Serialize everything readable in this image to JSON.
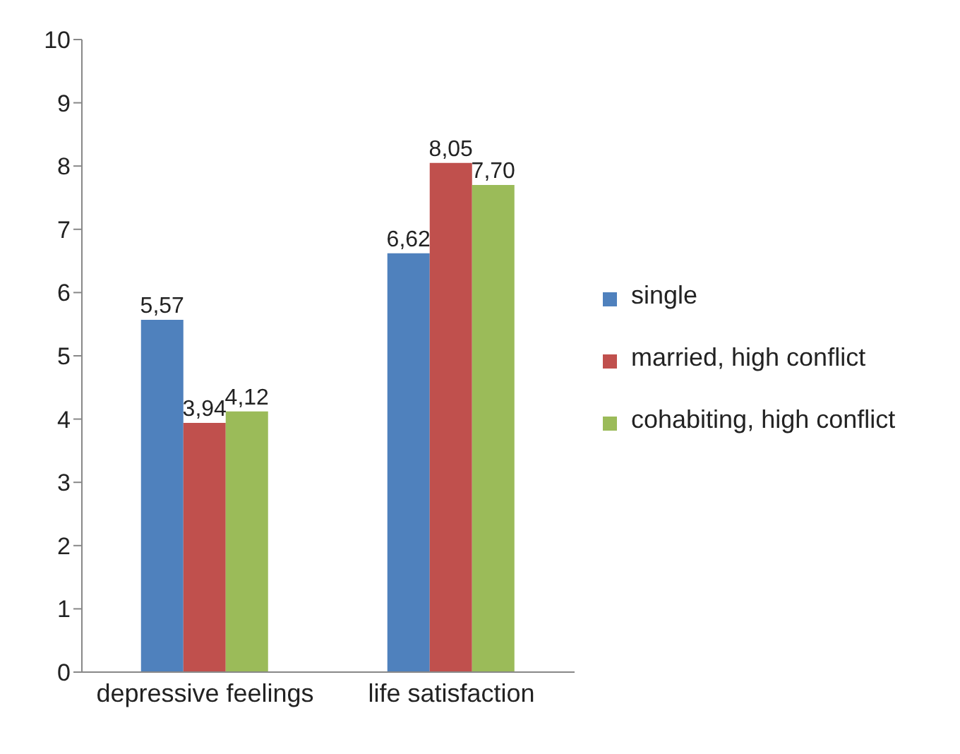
{
  "chart_data": {
    "type": "bar",
    "categories": [
      "depressive feelings",
      "life satisfaction"
    ],
    "series": [
      {
        "name": "single",
        "color": "#4f81bd",
        "values": [
          5.57,
          6.62
        ],
        "value_labels": [
          "5,57",
          "6,62"
        ]
      },
      {
        "name": "married, high conflict",
        "color": "#c0504d",
        "values": [
          3.94,
          8.05
        ],
        "value_labels": [
          "3,94",
          "8,05"
        ]
      },
      {
        "name": "cohabiting, high conflict",
        "color": "#9bbb59",
        "values": [
          4.12,
          7.7
        ],
        "value_labels": [
          "4,12",
          "7,70"
        ]
      }
    ],
    "ylim": [
      0,
      10
    ],
    "yticks": [
      0,
      1,
      2,
      3,
      4,
      5,
      6,
      7,
      8,
      9,
      10
    ],
    "grid": false,
    "legend": "right"
  }
}
